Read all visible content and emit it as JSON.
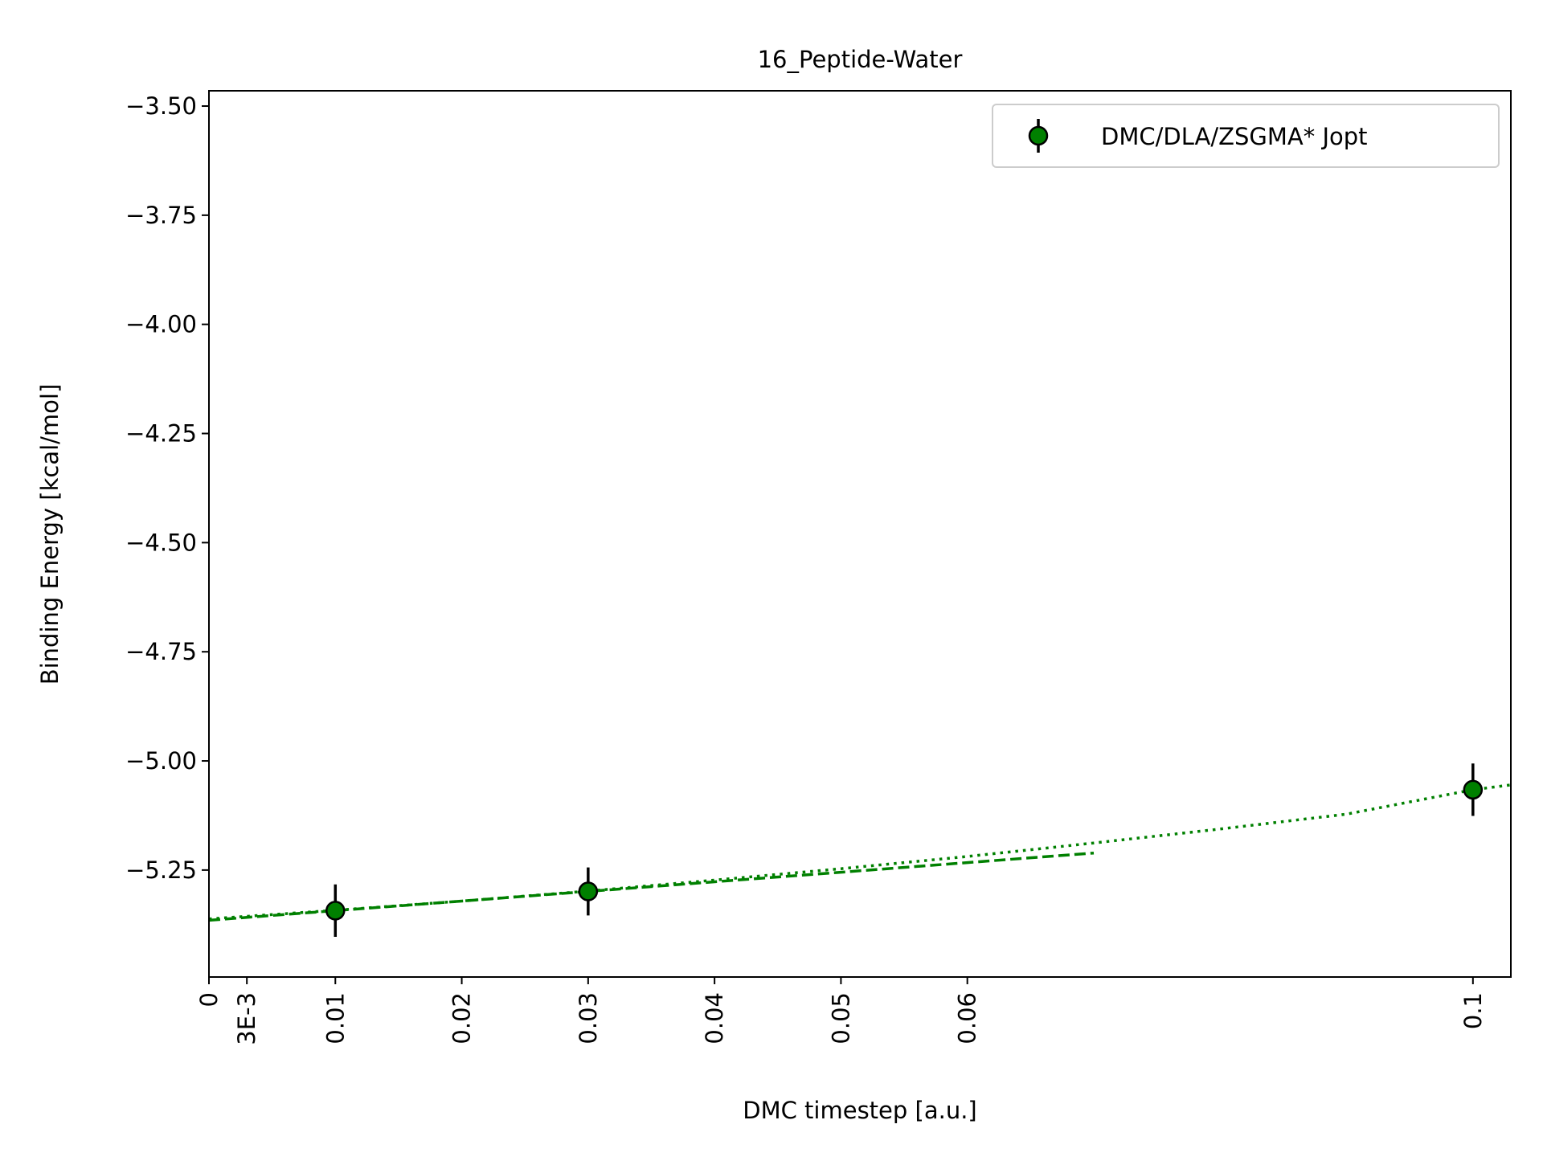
{
  "chart_data": {
    "type": "scatter",
    "title": "16_Peptide-Water",
    "xlabel": "DMC timestep [a.u.]",
    "ylabel": "Binding Energy [kcal/mol]",
    "xlim": [
      0,
      0.103
    ],
    "ylim": [
      -5.495,
      -3.465
    ],
    "x_ticks": [
      {
        "value": 0,
        "label": "0"
      },
      {
        "value": 0.003,
        "label": "3E-3"
      },
      {
        "value": 0.01,
        "label": "0.01"
      },
      {
        "value": 0.02,
        "label": "0.02"
      },
      {
        "value": 0.03,
        "label": "0.03"
      },
      {
        "value": 0.04,
        "label": "0.04"
      },
      {
        "value": 0.05,
        "label": "0.05"
      },
      {
        "value": 0.06,
        "label": "0.06"
      },
      {
        "value": 0.1,
        "label": "0.1"
      }
    ],
    "y_ticks": [
      {
        "value": -3.5,
        "label": "−3.50"
      },
      {
        "value": -3.75,
        "label": "−3.75"
      },
      {
        "value": -4.0,
        "label": "−4.00"
      },
      {
        "value": -4.25,
        "label": "−4.25"
      },
      {
        "value": -4.5,
        "label": "−4.50"
      },
      {
        "value": -4.75,
        "label": "−4.75"
      },
      {
        "value": -5.0,
        "label": "−5.00"
      },
      {
        "value": -5.25,
        "label": "−5.25"
      }
    ],
    "grid": false,
    "legend_position": "top-right",
    "series": [
      {
        "name": "DMC/DLA/ZSGMA* Jopt",
        "color": "#008000",
        "marker_edge_color": "#000000",
        "points": [
          {
            "x": 0.01,
            "y": -5.343,
            "err": 0.06
          },
          {
            "x": 0.03,
            "y": -5.299,
            "err": 0.055
          },
          {
            "x": 0.1,
            "y": -5.066,
            "err": 0.06
          }
        ]
      }
    ],
    "fit_lines": [
      {
        "style": "dashed",
        "color": "#008000",
        "x": [
          0,
          0.01,
          0.02,
          0.03,
          0.04,
          0.05,
          0.06,
          0.07
        ],
        "y": [
          -5.365,
          -5.343,
          -5.321,
          -5.299,
          -5.277,
          -5.255,
          -5.233,
          -5.211
        ]
      },
      {
        "style": "dotted",
        "color": "#008000",
        "x": [
          0,
          0.01,
          0.02,
          0.03,
          0.04,
          0.05,
          0.06,
          0.07,
          0.08,
          0.09,
          0.1,
          0.103
        ],
        "y": [
          -5.362,
          -5.342,
          -5.321,
          -5.298,
          -5.273,
          -5.247,
          -5.219,
          -5.188,
          -5.156,
          -5.122,
          -5.066,
          -5.055
        ]
      }
    ]
  }
}
